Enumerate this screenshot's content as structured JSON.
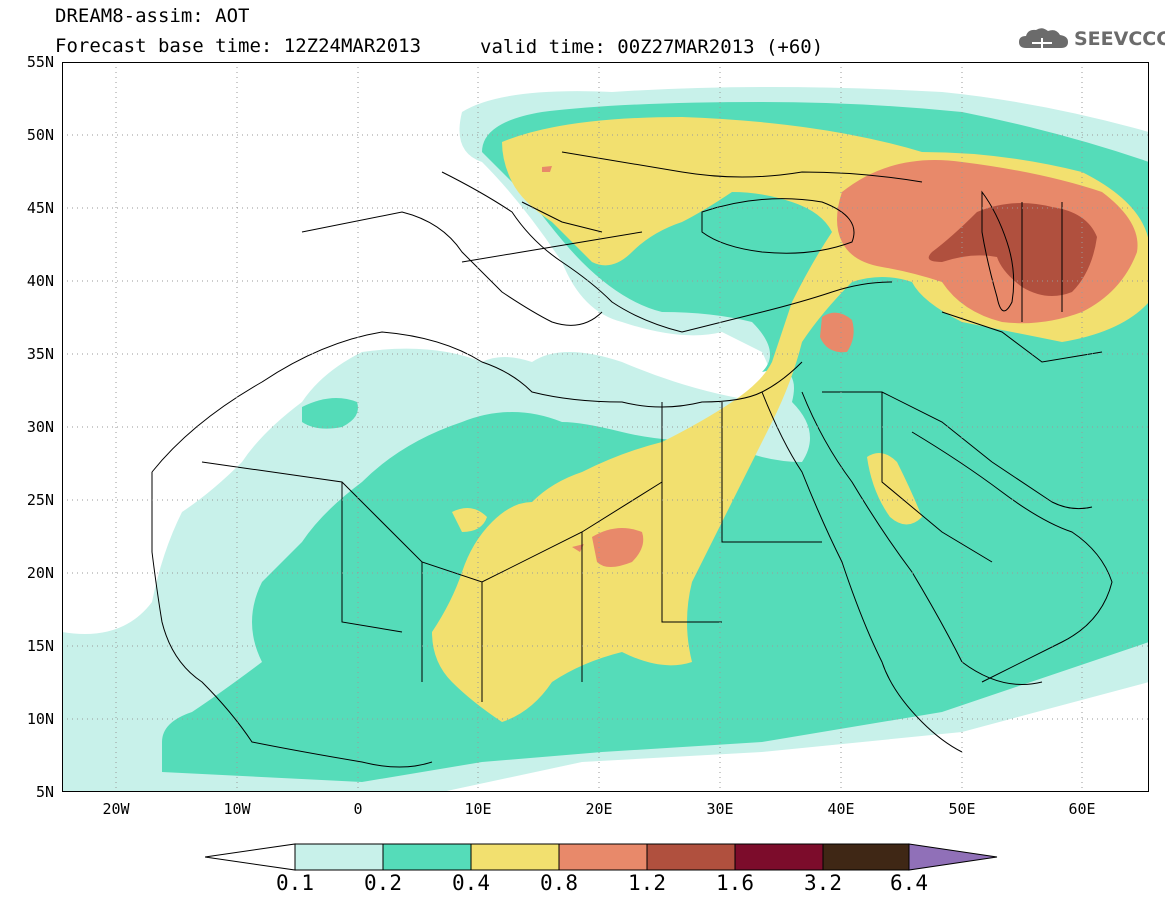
{
  "header": {
    "title": "DREAM8-assim: AOT",
    "base_time": "Forecast base time: 12Z24MAR2013",
    "valid_time": "valid time: 00Z27MAR2013 (+60)"
  },
  "logo": {
    "text": "SEEVCCC",
    "icon": "cloud-icon"
  },
  "map": {
    "lat_labels": [
      "55N",
      "50N",
      "45N",
      "40N",
      "35N",
      "30N",
      "25N",
      "20N",
      "15N",
      "10N",
      "5N"
    ],
    "lon_labels": [
      "20W",
      "10W",
      "0",
      "10E",
      "20E",
      "30E",
      "40E",
      "50E",
      "60E"
    ],
    "extent": {
      "lon_min": -25,
      "lon_max": 65,
      "lat_min": 5,
      "lat_max": 55
    }
  },
  "colorbar": {
    "labels": [
      "0.1",
      "0.2",
      "0.4",
      "0.8",
      "1.2",
      "1.6",
      "3.2",
      "6.4"
    ],
    "colors": [
      "#ffffff",
      "#c8f1ea",
      "#55dcb9",
      "#f2e06f",
      "#e8896a",
      "#b0503e",
      "#7c0c2b",
      "#3f2715",
      "#9070b8"
    ]
  }
}
